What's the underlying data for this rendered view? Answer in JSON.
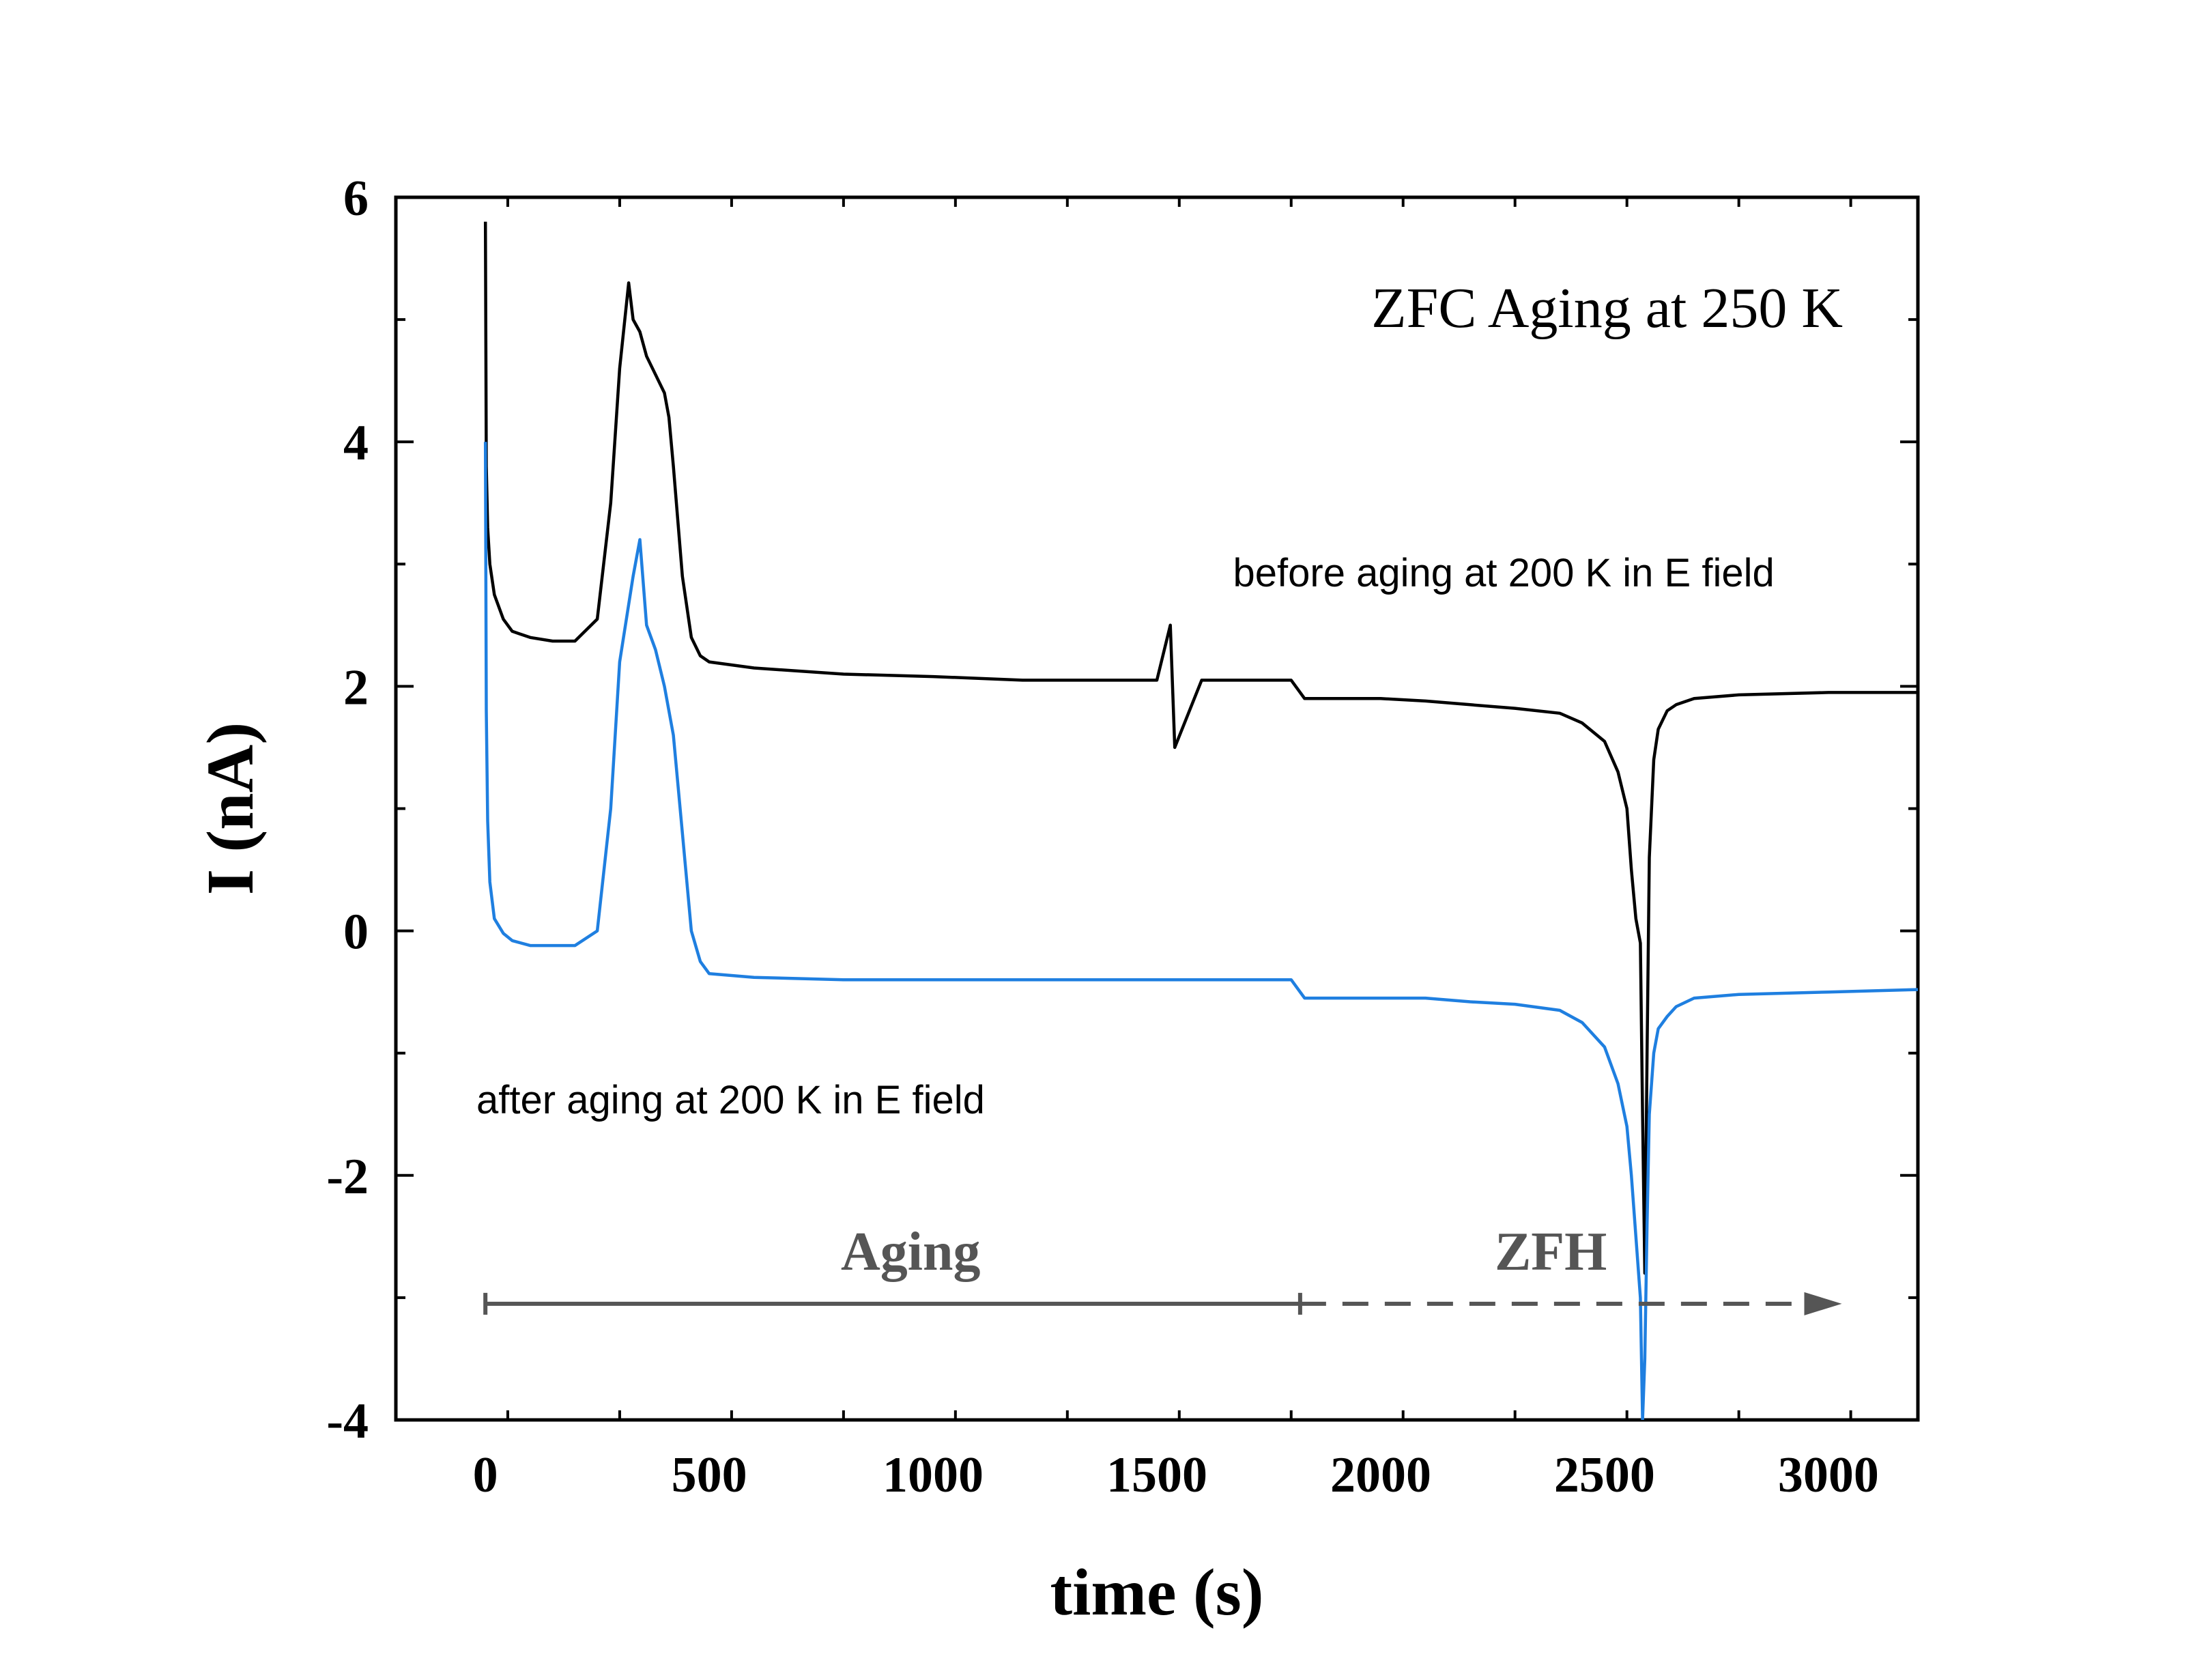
{
  "chart_data": {
    "type": "line",
    "title": "ZFC Aging at 250 K",
    "xlabel": "time (s)",
    "ylabel": "I (nA)",
    "xlim": [
      -200,
      3200
    ],
    "ylim": [
      -4,
      6
    ],
    "xticks": [
      0,
      500,
      1000,
      1500,
      2000,
      2500,
      3000
    ],
    "yticks": [
      -4,
      -2,
      0,
      2,
      4,
      6
    ],
    "xtick_labels": [
      "0",
      "500",
      "1000",
      "1500",
      "2000",
      "2500",
      "3000"
    ],
    "ytick_labels": [
      "-4",
      "-2",
      "0",
      "2",
      "4",
      "6"
    ],
    "grid": false,
    "legend": "none",
    "series": [
      {
        "name": "before aging at 200 K in E field",
        "color": "#000000",
        "x": [
          0,
          2,
          5,
          10,
          20,
          40,
          60,
          100,
          150,
          200,
          250,
          280,
          300,
          320,
          330,
          345,
          360,
          380,
          400,
          410,
          420,
          440,
          460,
          480,
          500,
          600,
          800,
          1000,
          1200,
          1400,
          1500,
          1530,
          1540,
          1600,
          1700,
          1800,
          1830,
          1900,
          2000,
          2100,
          2200,
          2300,
          2400,
          2450,
          2500,
          2530,
          2550,
          2560,
          2570,
          2580,
          2585,
          2590,
          2595,
          2600,
          2610,
          2620,
          2640,
          2660,
          2700,
          2800,
          3000,
          3200
        ],
        "y": [
          5.8,
          3.8,
          3.3,
          3.0,
          2.75,
          2.55,
          2.45,
          2.4,
          2.37,
          2.37,
          2.55,
          3.5,
          4.6,
          5.3,
          5.0,
          4.9,
          4.7,
          4.55,
          4.4,
          4.2,
          3.8,
          2.9,
          2.4,
          2.25,
          2.2,
          2.15,
          2.1,
          2.08,
          2.05,
          2.05,
          2.05,
          2.5,
          1.5,
          2.05,
          2.05,
          2.05,
          1.9,
          1.9,
          1.9,
          1.88,
          1.85,
          1.82,
          1.78,
          1.7,
          1.55,
          1.3,
          1.0,
          0.5,
          0.1,
          -0.1,
          -1.5,
          -2.8,
          -1.0,
          0.6,
          1.4,
          1.65,
          1.8,
          1.85,
          1.9,
          1.93,
          1.95,
          1.95
        ]
      },
      {
        "name": "after aging at 200 K in E field",
        "color": "#1f7fe0",
        "x": [
          0,
          2,
          5,
          10,
          20,
          40,
          60,
          100,
          150,
          200,
          250,
          280,
          300,
          330,
          345,
          360,
          380,
          400,
          420,
          440,
          460,
          480,
          500,
          600,
          800,
          1000,
          1200,
          1400,
          1500,
          1600,
          1700,
          1800,
          1830,
          1900,
          2000,
          2100,
          2200,
          2300,
          2400,
          2450,
          2500,
          2530,
          2550,
          2560,
          2570,
          2580,
          2585,
          2590,
          2595,
          2600,
          2610,
          2620,
          2640,
          2660,
          2700,
          2800,
          3000,
          3200
        ],
        "y": [
          4.0,
          1.8,
          0.9,
          0.4,
          0.1,
          -0.02,
          -0.08,
          -0.12,
          -0.12,
          -0.12,
          0.0,
          1.0,
          2.2,
          2.9,
          3.2,
          2.5,
          2.3,
          2.0,
          1.6,
          0.8,
          0.0,
          -0.25,
          -0.35,
          -0.38,
          -0.4,
          -0.4,
          -0.4,
          -0.4,
          -0.4,
          -0.4,
          -0.4,
          -0.4,
          -0.55,
          -0.55,
          -0.55,
          -0.55,
          -0.58,
          -0.6,
          -0.65,
          -0.75,
          -0.95,
          -1.25,
          -1.6,
          -2.0,
          -2.5,
          -3.0,
          -4.0,
          -3.5,
          -2.4,
          -1.5,
          -1.0,
          -0.8,
          -0.7,
          -0.62,
          -0.55,
          -0.52,
          -0.5,
          -0.48
        ]
      }
    ],
    "annotations": {
      "before_label": "before aging at 200 K in E field",
      "after_label": "after aging at 200 K in E field",
      "aging_label": "Aging",
      "zfh_label": "ZFH",
      "aging_start": 0,
      "aging_end": 1820,
      "zfh_end": 3030,
      "arrow_y": -3.05,
      "arrow_color": "#555555",
      "aging_label_x": 950,
      "zfh_label_x": 2380,
      "before_label_x": 1670,
      "before_label_y": 2.93,
      "after_label_x": -20,
      "after_label_y": -1.38
    }
  }
}
